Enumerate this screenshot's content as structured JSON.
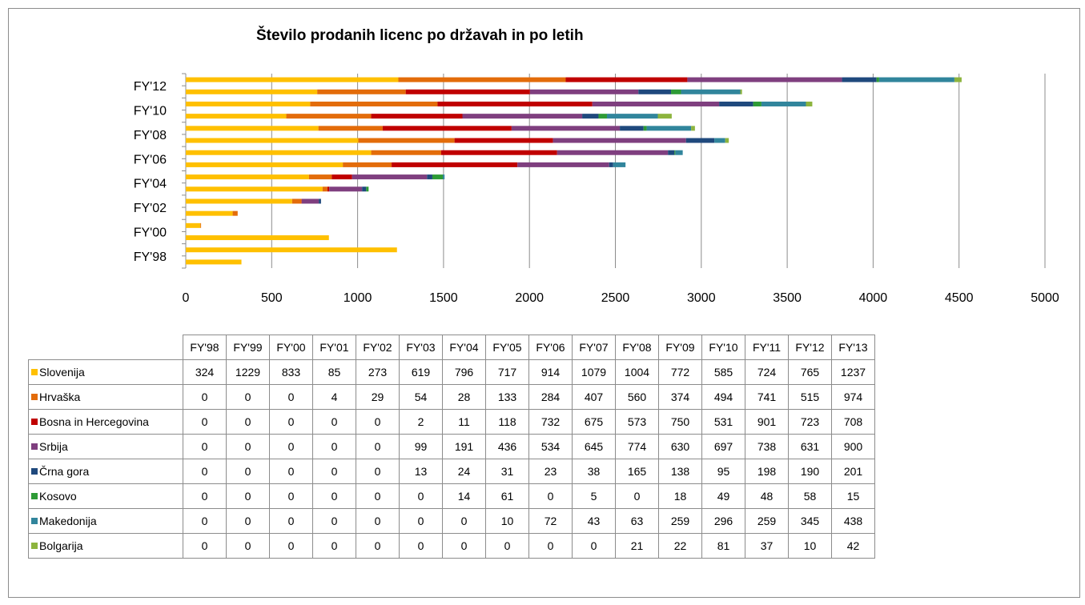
{
  "chart_data": {
    "type": "bar",
    "orientation": "horizontal",
    "stacked": true,
    "title": "Število prodanih licenc po državah in po letih",
    "categories": [
      "FY'98",
      "FY'99",
      "FY'00",
      "FY'01",
      "FY'02",
      "FY'03",
      "FY'04",
      "FY'05",
      "FY'06",
      "FY'07",
      "FY'08",
      "FY'09",
      "FY'10",
      "FY'11",
      "FY'12",
      "FY'13"
    ],
    "y_tick_labels": [
      "FY'98",
      "FY'00",
      "FY'02",
      "FY'04",
      "FY'06",
      "FY'08",
      "FY'10",
      "FY'12"
    ],
    "x_ticks": [
      0,
      500,
      1000,
      1500,
      2000,
      2500,
      3000,
      3500,
      4000,
      4500,
      5000
    ],
    "xlim": [
      0,
      5000
    ],
    "grid": true,
    "legend": "data-table",
    "series": [
      {
        "name": "Slovenija",
        "color": "#FFC000",
        "values": [
          324,
          1229,
          833,
          85,
          273,
          619,
          796,
          717,
          914,
          1079,
          1004,
          772,
          585,
          724,
          765,
          1237
        ]
      },
      {
        "name": "Hrvaška",
        "color": "#E36C0A",
        "values": [
          0,
          0,
          0,
          4,
          29,
          54,
          28,
          133,
          284,
          407,
          560,
          374,
          494,
          741,
          515,
          974
        ]
      },
      {
        "name": "Bosna in Hercegovina",
        "color": "#C00000",
        "values": [
          0,
          0,
          0,
          0,
          0,
          2,
          11,
          118,
          732,
          675,
          573,
          750,
          531,
          901,
          723,
          708
        ]
      },
      {
        "name": "Srbija",
        "color": "#7F3F7F",
        "values": [
          0,
          0,
          0,
          0,
          0,
          99,
          191,
          436,
          534,
          645,
          774,
          630,
          697,
          738,
          631,
          900
        ]
      },
      {
        "name": "Črna gora",
        "color": "#1F497D",
        "values": [
          0,
          0,
          0,
          0,
          0,
          13,
          24,
          31,
          23,
          38,
          165,
          138,
          95,
          198,
          190,
          201
        ]
      },
      {
        "name": "Kosovo",
        "color": "#2E9B36",
        "values": [
          0,
          0,
          0,
          0,
          0,
          0,
          14,
          61,
          0,
          5,
          0,
          18,
          49,
          48,
          58,
          15
        ]
      },
      {
        "name": "Makedonija",
        "color": "#31859C",
        "values": [
          0,
          0,
          0,
          0,
          0,
          0,
          0,
          10,
          72,
          43,
          63,
          259,
          296,
          259,
          345,
          438
        ]
      },
      {
        "name": "Bolgarija",
        "color": "#8DB43E",
        "values": [
          0,
          0,
          0,
          0,
          0,
          0,
          0,
          0,
          0,
          0,
          21,
          22,
          81,
          37,
          10,
          42
        ]
      }
    ]
  }
}
